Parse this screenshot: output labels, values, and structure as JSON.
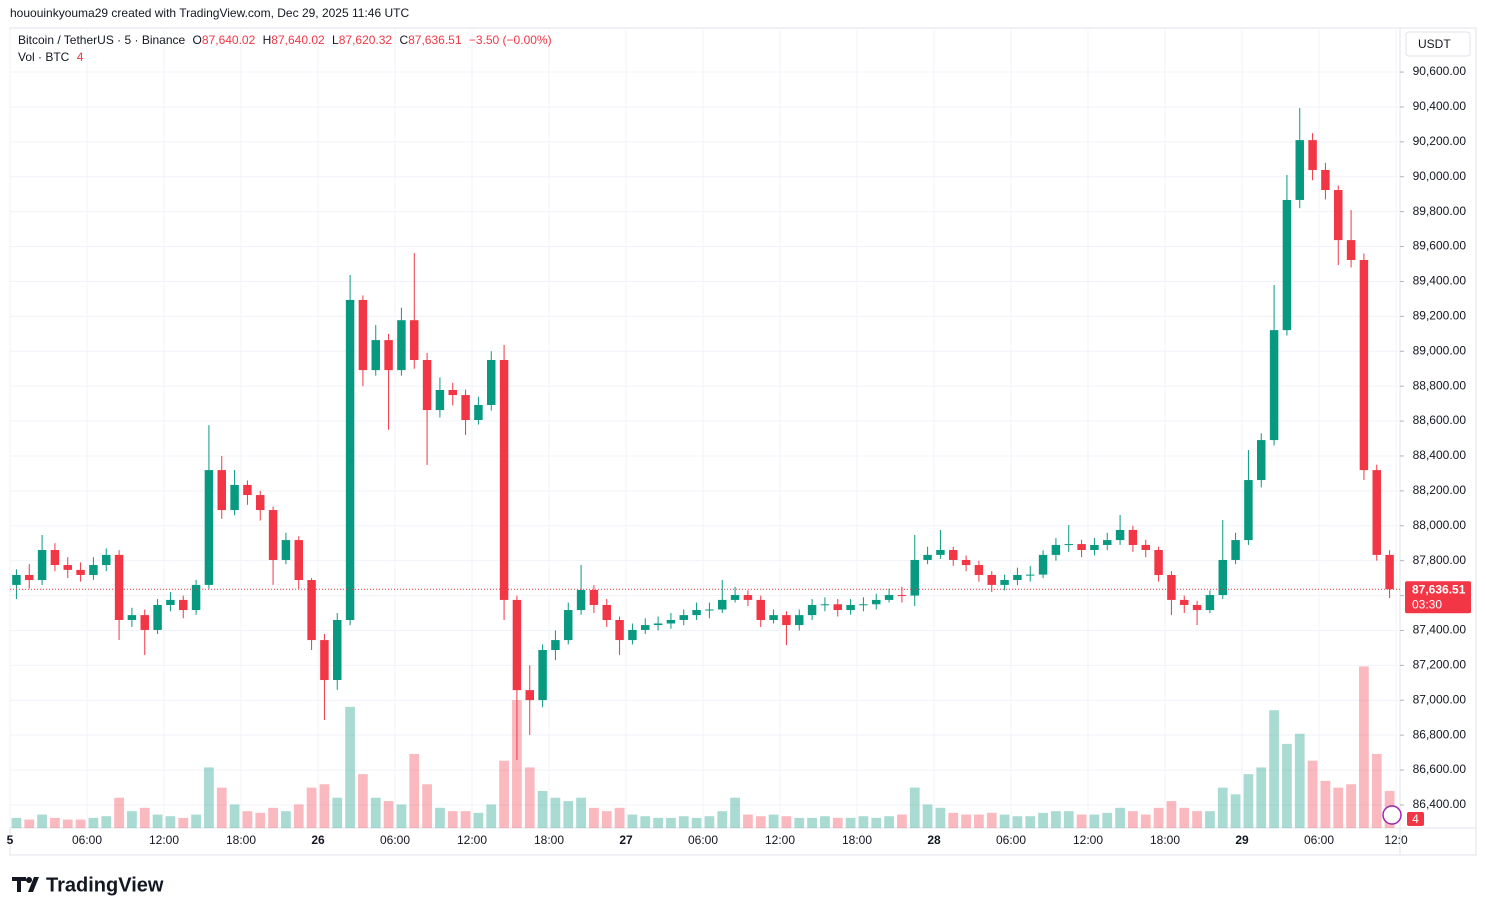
{
  "header": {
    "credit": "hououinkyouma29 created with TradingView.com, Dec 29, 2025 11:46 UTC"
  },
  "legend": {
    "symbol": "Bitcoin / TetherUS · 5 · Binance",
    "open_label": "O",
    "open": "87,640.02",
    "high_label": "H",
    "high": "87,640.02",
    "low_label": "L",
    "low": "87,620.32",
    "close_label": "C",
    "close": "87,636.51",
    "change": "−3.50 (−0.00%)",
    "volume_label": "Vol · BTC",
    "volume": "4"
  },
  "currency": "USDT",
  "logo": "TradingView",
  "chart_data": {
    "type": "candlestick",
    "up_color": "#089981",
    "down_color": "#f23645",
    "grid": true,
    "ylim": [
      86268,
      90841
    ],
    "yticks": [
      {
        "value": 86400,
        "label": "86,400.00"
      },
      {
        "value": 86600,
        "label": "86,600.00"
      },
      {
        "value": 86800,
        "label": "86,800.00"
      },
      {
        "value": 87000,
        "label": "87,000.00"
      },
      {
        "value": 87200,
        "label": "87,200.00"
      },
      {
        "value": 87400,
        "label": "87,400.00"
      },
      {
        "value": 87600,
        "label": "87,600.00"
      },
      {
        "value": 87800,
        "label": "87,800.00"
      },
      {
        "value": 88000,
        "label": "88,000.00"
      },
      {
        "value": 88200,
        "label": "88,200.00"
      },
      {
        "value": 88400,
        "label": "88,400.00"
      },
      {
        "value": 88600,
        "label": "88,600.00"
      },
      {
        "value": 88800,
        "label": "88,800.00"
      },
      {
        "value": 89000,
        "label": "89,000.00"
      },
      {
        "value": 89200,
        "label": "89,200.00"
      },
      {
        "value": 89400,
        "label": "89,400.00"
      },
      {
        "value": 89600,
        "label": "89,600.00"
      },
      {
        "value": 89800,
        "label": "89,800.00"
      },
      {
        "value": 90000,
        "label": "90,000.00"
      },
      {
        "value": 90200,
        "label": "90,200.00"
      },
      {
        "value": 90400,
        "label": "90,400.00"
      },
      {
        "value": 90600,
        "label": "90,600.00"
      }
    ],
    "volume_lim": [
      0,
      5200
    ],
    "last_price": {
      "value": 87636.51,
      "label": "87,636.51",
      "countdown": "03:30"
    },
    "volume_badge": "4",
    "categories": [
      "5",
      null,
      null,
      null,
      null,
      null,
      "06:00",
      null,
      null,
      null,
      null,
      null,
      "12:00",
      null,
      null,
      null,
      null,
      null,
      "18:00",
      null,
      null,
      null,
      null,
      null,
      "26",
      null,
      null,
      null,
      null,
      null,
      "06:00",
      null,
      null,
      null,
      null,
      null,
      "12:00",
      null,
      null,
      null,
      null,
      null,
      "18:00",
      null,
      null,
      null,
      null,
      null,
      "27",
      null,
      null,
      null,
      null,
      null,
      "06:00",
      null,
      null,
      null,
      null,
      null,
      "12:00",
      null,
      null,
      null,
      null,
      null,
      "18:00",
      null,
      null,
      null,
      null,
      null,
      "28",
      null,
      null,
      null,
      null,
      null,
      "06:00",
      null,
      null,
      null,
      null,
      null,
      "12:00",
      null,
      null,
      null,
      null,
      null,
      "18:00",
      null,
      null,
      null,
      null,
      null,
      "29",
      null,
      null,
      null,
      null,
      null,
      "06:00",
      null,
      null,
      null,
      null,
      null,
      "12:0"
    ],
    "open": [
      87661,
      87718,
      87689,
      87861,
      87775,
      87747,
      87718,
      87775,
      87833,
      87460,
      87488,
      87403,
      87546,
      87575,
      87517,
      87661,
      88319,
      88090,
      88234,
      88176,
      88090,
      87804,
      87918,
      87689,
      87345,
      87116,
      87460,
      89294,
      88892,
      89064,
      88892,
      89178,
      88950,
      88663,
      88778,
      88749,
      88606,
      88692,
      88950,
      87575,
      87058,
      87001,
      87288,
      87345,
      87517,
      87632,
      87546,
      87460,
      87345,
      87403,
      87431,
      87440,
      87460,
      87488,
      87517,
      87520,
      87575,
      87603,
      87575,
      87460,
      87488,
      87431,
      87488,
      87546,
      87550,
      87517,
      87546,
      87550,
      87575,
      87603,
      87600,
      87804,
      87833,
      87861,
      87804,
      87775,
      87718,
      87661,
      87689,
      87718,
      87720,
      87833,
      87890,
      87895,
      87861,
      87890,
      87918,
      87976,
      87890,
      87861,
      87718,
      87575,
      87546,
      87517,
      87603,
      87804,
      87918,
      88262,
      88491,
      89121,
      89867,
      90210,
      90039,
      89924,
      89637,
      89523,
      88319,
      87833,
      null
    ],
    "high": [
      87750,
      87780,
      87947,
      87900,
      87820,
      87790,
      87820,
      87870,
      87860,
      87530,
      87520,
      87580,
      87620,
      87600,
      87690,
      88577,
      88400,
      88320,
      88260,
      88200,
      88110,
      87960,
      87940,
      87700,
      87380,
      87500,
      89437,
      89320,
      89150,
      89100,
      89250,
      89563,
      88990,
      88850,
      88820,
      88780,
      88740,
      89000,
      89036,
      87600,
      87200,
      87320,
      87400,
      87560,
      87775,
      87660,
      87580,
      87480,
      87440,
      87470,
      87480,
      87500,
      87520,
      87560,
      87560,
      87689,
      87650,
      87630,
      87600,
      87520,
      87510,
      87520,
      87580,
      87590,
      87580,
      87580,
      87590,
      87610,
      87640,
      87650,
      87947,
      87880,
      87976,
      87880,
      87830,
      87800,
      87740,
      87720,
      87760,
      87770,
      87860,
      87930,
      88004,
      87920,
      87930,
      87960,
      88062,
      88000,
      87920,
      87880,
      87740,
      87600,
      87570,
      87630,
      88033,
      87960,
      88434,
      88530,
      89380,
      90010,
      90394,
      90250,
      90080,
      89950,
      89809,
      89560,
      88350,
      87860,
      null
    ],
    "low": [
      87580,
      87640,
      87660,
      87740,
      87700,
      87680,
      87690,
      87740,
      87345,
      87420,
      87259,
      87380,
      87510,
      87470,
      87490,
      87640,
      88040,
      88060,
      88120,
      88030,
      87661,
      87780,
      87640,
      87288,
      86887,
      87060,
      87430,
      88800,
      88860,
      88550,
      88860,
      88900,
      88348,
      88620,
      88690,
      88520,
      88580,
      88660,
      87460,
      86658,
      86801,
      86960,
      87230,
      87320,
      87490,
      87500,
      87420,
      87259,
      87320,
      87380,
      87400,
      87410,
      87430,
      87460,
      87470,
      87500,
      87560,
      87540,
      87420,
      87440,
      87316,
      87400,
      87460,
      87510,
      87480,
      87490,
      87510,
      87520,
      87560,
      87560,
      87540,
      87780,
      87810,
      87770,
      87740,
      87680,
      87620,
      87630,
      87660,
      87680,
      87700,
      87800,
      87850,
      87820,
      87830,
      87860,
      87890,
      87850,
      87820,
      87680,
      87488,
      87500,
      87431,
      87500,
      87580,
      87780,
      87890,
      88220,
      88460,
      89090,
      89820,
      89980,
      89870,
      89494,
      89480,
      88262,
      87800,
      87586,
      null
    ],
    "close": [
      87718,
      87689,
      87861,
      87775,
      87747,
      87718,
      87775,
      87833,
      87460,
      87488,
      87403,
      87546,
      87575,
      87517,
      87661,
      88319,
      88090,
      88234,
      88176,
      88090,
      87804,
      87918,
      87689,
      87345,
      87116,
      87460,
      89294,
      88892,
      89064,
      88892,
      89178,
      88950,
      88663,
      88778,
      88749,
      88606,
      88692,
      88950,
      87575,
      87058,
      87001,
      87288,
      87345,
      87517,
      87632,
      87546,
      87460,
      87345,
      87403,
      87431,
      87440,
      87460,
      87488,
      87517,
      87520,
      87575,
      87603,
      87575,
      87460,
      87488,
      87431,
      87488,
      87546,
      87550,
      87517,
      87546,
      87550,
      87575,
      87603,
      87600,
      87804,
      87833,
      87861,
      87804,
      87775,
      87718,
      87661,
      87689,
      87718,
      87720,
      87833,
      87890,
      87895,
      87861,
      87890,
      87918,
      87976,
      87890,
      87861,
      87718,
      87575,
      87546,
      87517,
      87603,
      87804,
      87918,
      88262,
      88491,
      89121,
      89867,
      90210,
      90039,
      89924,
      89637,
      89523,
      88319,
      87833,
      87636.51,
      null
    ],
    "volume": [
      300,
      250,
      400,
      300,
      250,
      250,
      300,
      350,
      900,
      500,
      600,
      400,
      350,
      300,
      400,
      1800,
      1200,
      700,
      500,
      450,
      600,
      500,
      700,
      1200,
      1300,
      900,
      3600,
      1600,
      900,
      800,
      700,
      2200,
      1300,
      600,
      500,
      500,
      450,
      700,
      2000,
      3800,
      1800,
      1100,
      900,
      800,
      900,
      600,
      500,
      600,
      400,
      350,
      300,
      300,
      350,
      300,
      350,
      500,
      900,
      400,
      350,
      400,
      350,
      300,
      300,
      350,
      300,
      300,
      350,
      300,
      350,
      400,
      1200,
      700,
      600,
      450,
      400,
      400,
      450,
      400,
      350,
      350,
      450,
      500,
      500,
      400,
      400,
      450,
      600,
      500,
      400,
      600,
      800,
      600,
      500,
      500,
      1200,
      1000,
      1600,
      1800,
      3500,
      2500,
      2800,
      2000,
      1400,
      1200,
      1300,
      4800,
      2200,
      1100,
      null
    ]
  }
}
